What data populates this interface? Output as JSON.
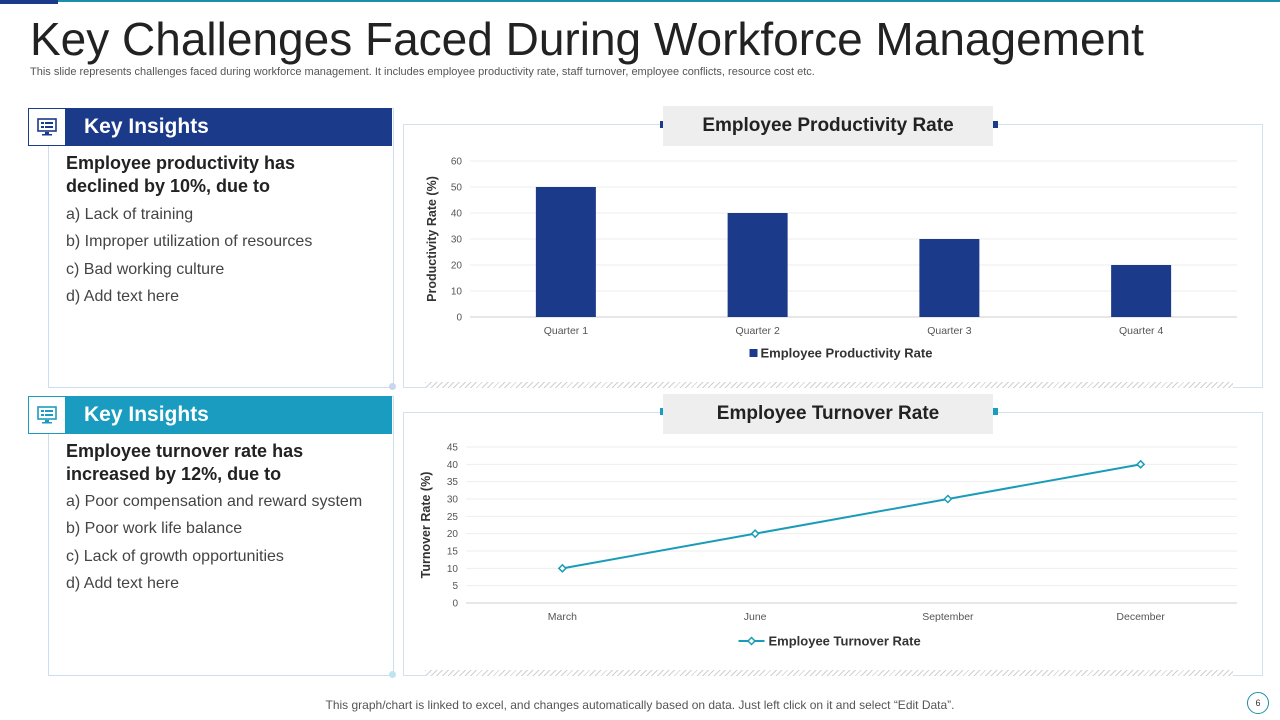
{
  "slide": {
    "title": "Key Challenges Faced During Workforce Management",
    "subtitle": "This slide represents challenges faced during workforce management. It includes employee productivity rate, staff turnover,  employee conflicts, resource cost etc.",
    "footer": "This graph/chart is linked to excel,  and changes automatically based on data. Just left click on it and select “Edit Data”.",
    "page_number": "6"
  },
  "colors": {
    "navy": "#1b3a8a",
    "teal": "#1a9cc0",
    "line": "#1a9cb8"
  },
  "insights": [
    {
      "header": "Key Insights",
      "icon": "monitor-icon",
      "heading_line1": "Employee productivity has",
      "heading_line2": "declined by 10%, due to",
      "items": [
        "a) Lack of training",
        "b) Improper utilization of resources",
        "c)  Bad working culture",
        "d) Add text here"
      ]
    },
    {
      "header": "Key Insights",
      "icon": "monitor-icon",
      "heading_line1": "Employee turnover rate has",
      "heading_line2": "increased by 12%, due to",
      "items": [
        "a) Poor compensation and reward system",
        "b) Poor work life balance",
        "c)  Lack of growth opportunities",
        "d) Add text here"
      ]
    }
  ],
  "chart_data": [
    {
      "type": "bar",
      "title": "Employee Productivity Rate",
      "categories": [
        "Quarter 1",
        "Quarter 2",
        "Quarter 3",
        "Quarter 4"
      ],
      "series": [
        {
          "name": "Employee Productivity Rate",
          "values": [
            50,
            40,
            30,
            20
          ]
        }
      ],
      "ylabel": "Productivity  Rate (%)",
      "xlabel": "",
      "ylim": [
        0,
        60
      ],
      "yticks": [
        0,
        10,
        20,
        30,
        40,
        50,
        60
      ],
      "legend": "bottom"
    },
    {
      "type": "line",
      "title": "Employee Turnover Rate",
      "categories": [
        "March",
        "June",
        "September",
        "December"
      ],
      "series": [
        {
          "name": "Employee Turnover Rate",
          "values": [
            10,
            20,
            30,
            40
          ]
        }
      ],
      "ylabel": "Turnover  Rate (%)",
      "xlabel": "",
      "ylim": [
        0,
        45
      ],
      "yticks": [
        0,
        5,
        10,
        15,
        20,
        25,
        30,
        35,
        40,
        45
      ],
      "legend": "bottom"
    }
  ]
}
